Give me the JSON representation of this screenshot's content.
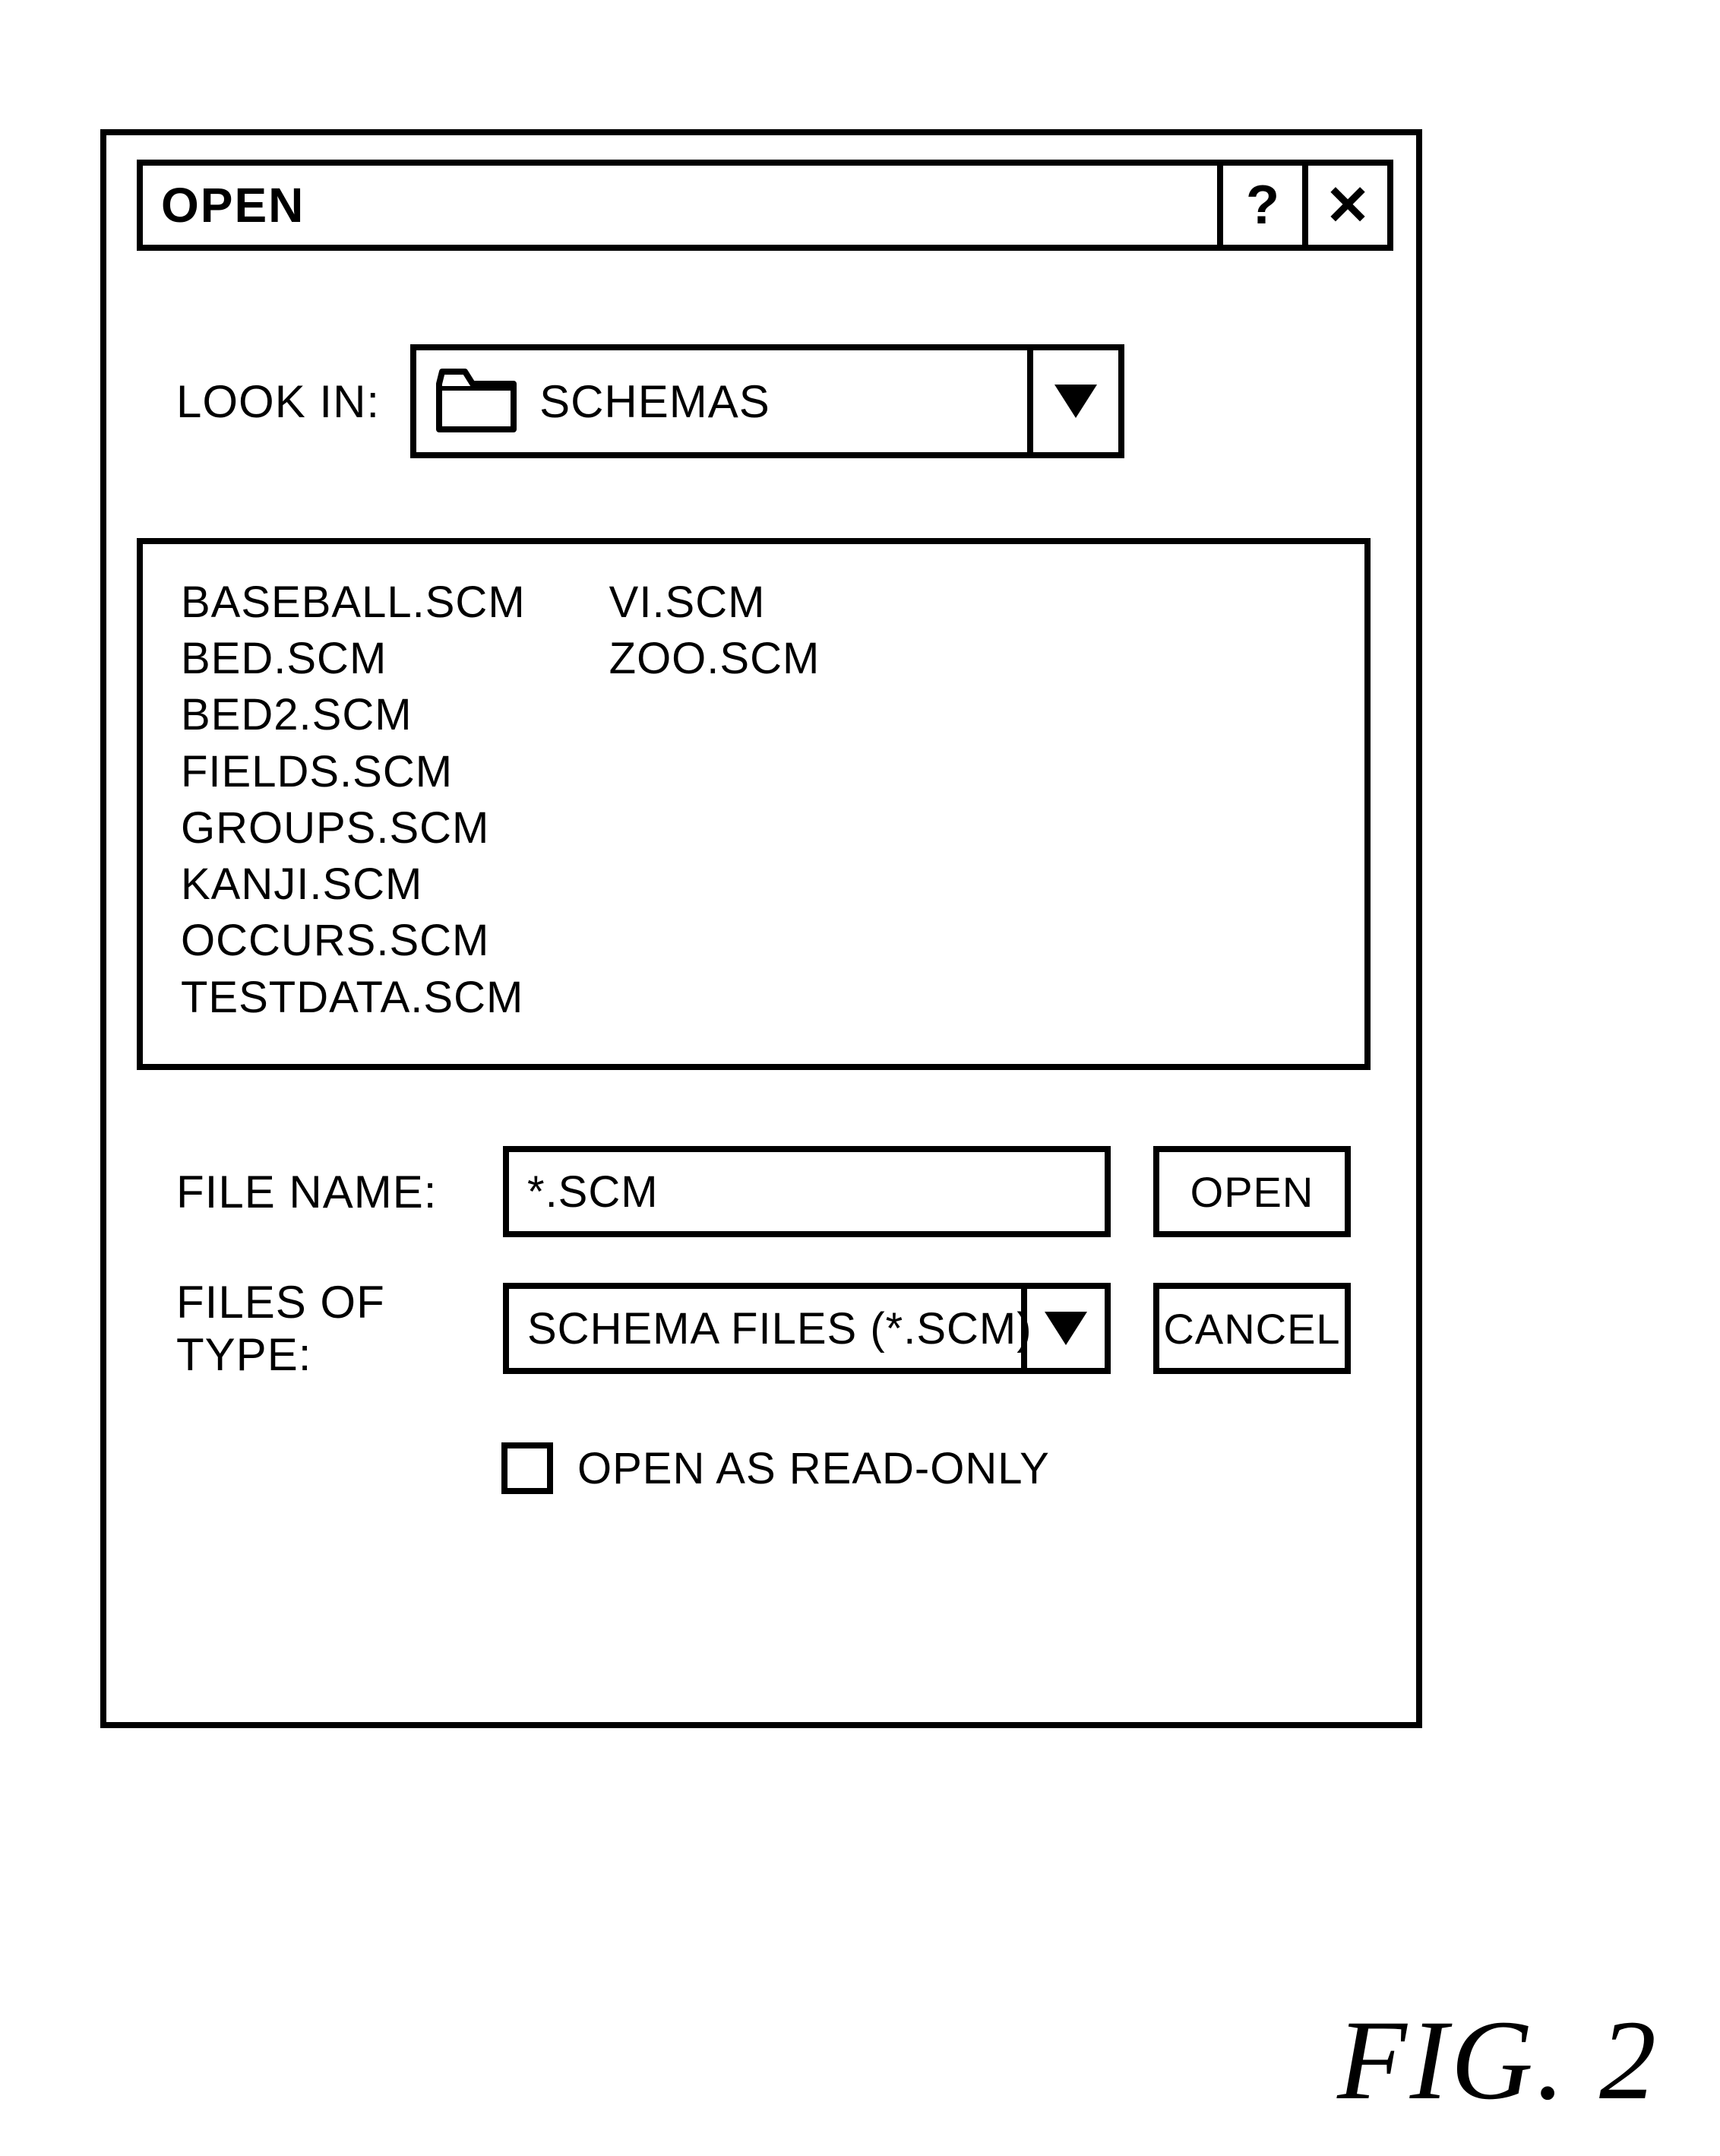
{
  "dialog": {
    "title": "OPEN",
    "help_glyph": "?",
    "close_glyph": "✕"
  },
  "lookin": {
    "label": "LOOK IN:",
    "folder_name": "SCHEMAS"
  },
  "files": {
    "col1": [
      "BASEBALL.SCM",
      "BED.SCM",
      "BED2.SCM",
      "FIELDS.SCM",
      "GROUPS.SCM",
      "KANJI.SCM",
      "OCCURS.SCM",
      "TESTDATA.SCM"
    ],
    "col2": [
      "VI.SCM",
      "ZOO.SCM"
    ]
  },
  "filename": {
    "label": "FILE NAME:",
    "value": "*.SCM"
  },
  "filetype": {
    "label": "FILES OF TYPE:",
    "value": "SCHEMA FILES (*.SCM)"
  },
  "buttons": {
    "open": "OPEN",
    "cancel": "CANCEL"
  },
  "readonly": {
    "label": "OPEN AS READ-ONLY",
    "checked": false
  },
  "figure": {
    "label": "FIG. 2"
  },
  "colors": {
    "stroke": "#000000",
    "bg": "#ffffff"
  }
}
